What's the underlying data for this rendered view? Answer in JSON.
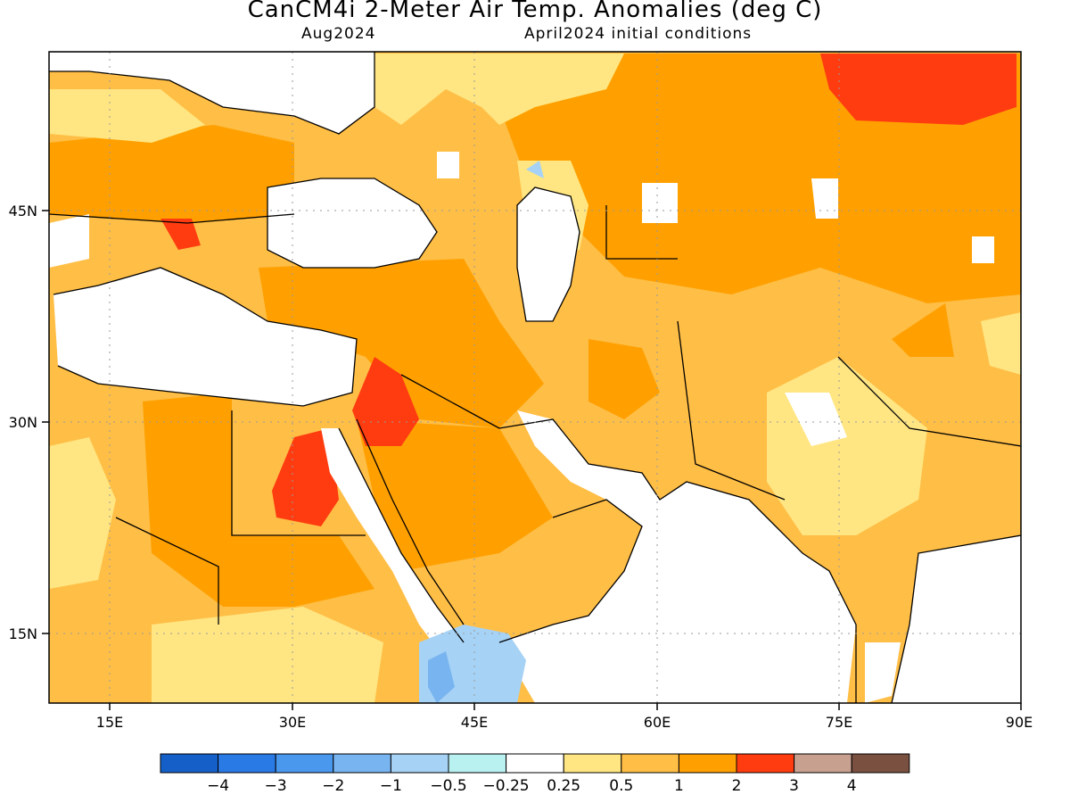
{
  "header": {
    "title": "CanCM4i 2-Meter Air Temp. Anomalies (deg C)",
    "valid_month": "Aug2024",
    "init": "April2024 initial conditions"
  },
  "map": {
    "lon_range": [
      10,
      90
    ],
    "lat_range": [
      10,
      55
    ],
    "lon_ticks": [
      "15E",
      "30E",
      "45E",
      "60E",
      "75E",
      "90E"
    ],
    "lat_ticks": [
      "45N",
      "30N",
      "15N"
    ],
    "region": "Middle East, North Africa, Central and South Asia"
  },
  "colorbar": {
    "labels": [
      "-4",
      "-3",
      "-2",
      "-1",
      "-0.5",
      "-0.25",
      "0.25",
      "0.5",
      "1",
      "2",
      "3",
      "4"
    ],
    "colors": [
      "#1560c8",
      "#2a7ae6",
      "#4a98ee",
      "#78b4f0",
      "#a6d2f5",
      "#b9f0f0",
      "#ffffff",
      "#ffe682",
      "#ffbe46",
      "#ffa000",
      "#ff3c10",
      "#c8a090",
      "#7a5040"
    ]
  },
  "colors": {
    "light_yellow": "#ffe682",
    "light_orange": "#ffbe46",
    "orange": "#ffa000",
    "red": "#ff3c10",
    "light_blue": "#a6d2f5",
    "cyan": "#b9f0f0"
  }
}
